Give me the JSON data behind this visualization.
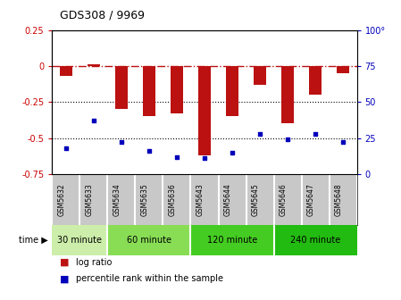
{
  "title": "GDS308 / 9969",
  "samples": [
    "GSM5632",
    "GSM5633",
    "GSM5634",
    "GSM5635",
    "GSM5636",
    "GSM5643",
    "GSM5644",
    "GSM5645",
    "GSM5646",
    "GSM5647",
    "GSM5648"
  ],
  "log_ratio": [
    -0.07,
    0.01,
    -0.3,
    -0.35,
    -0.33,
    -0.62,
    -0.35,
    -0.13,
    -0.4,
    -0.2,
    -0.05
  ],
  "percentile_rank": [
    18,
    37,
    22,
    16,
    12,
    11,
    15,
    28,
    24,
    28,
    22
  ],
  "ylim_left": [
    -0.75,
    0.25
  ],
  "ylim_right": [
    0,
    100
  ],
  "yticks_left": [
    0.25,
    0,
    -0.25,
    -0.5,
    -0.75
  ],
  "yticks_right": [
    100,
    75,
    50,
    25,
    0
  ],
  "bar_color": "#bb1111",
  "scatter_color": "#0000bb",
  "dotted_lines": [
    -0.25,
    -0.5
  ],
  "time_groups": [
    {
      "label": "30 minute",
      "start": 0,
      "end": 2,
      "color": "#cceeaa"
    },
    {
      "label": "60 minute",
      "start": 2,
      "end": 5,
      "color": "#88dd55"
    },
    {
      "label": "120 minute",
      "start": 5,
      "end": 8,
      "color": "#44cc22"
    },
    {
      "label": "240 minute",
      "start": 8,
      "end": 11,
      "color": "#22bb11"
    }
  ],
  "time_label": "time",
  "legend_log": "log ratio",
  "legend_pct": "percentile rank within the sample",
  "bar_width": 0.45
}
